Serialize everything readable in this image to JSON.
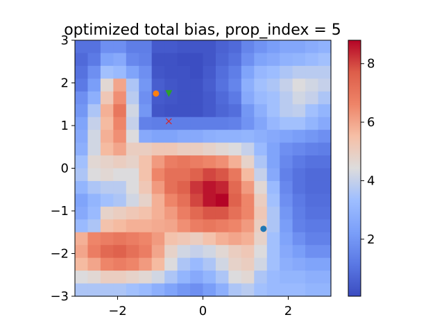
{
  "chart_data": {
    "type": "heatmap",
    "title": "optimized total bias, prop_index = 5",
    "xlabel": "",
    "ylabel": "",
    "xlim": [
      -3,
      3
    ],
    "ylim": [
      -3,
      3
    ],
    "x_ticks": [
      "−2",
      "0",
      "2"
    ],
    "y_ticks": [
      "3",
      "2",
      "1",
      "0",
      "−1",
      "−2",
      "−3"
    ],
    "grid": false,
    "colormap": "coolwarm",
    "colorbar": {
      "min": 0.05,
      "max": 8.8,
      "ticks": [
        "2",
        "4",
        "6",
        "8"
      ]
    },
    "rows": 20,
    "cols": 20,
    "grid_values": [
      [
        1.0,
        1.0,
        1.8,
        1.8,
        1.3,
        1.3,
        0.4,
        0.4,
        0.3,
        0.3,
        0.3,
        0.6,
        0.8,
        1.5,
        1.9,
        2.2,
        2.5,
        2.5,
        2.7,
        2.9
      ],
      [
        0.8,
        1.2,
        2.4,
        2.6,
        1.6,
        1.4,
        0.2,
        0.2,
        0.1,
        0.1,
        0.3,
        0.7,
        1.0,
        1.8,
        2.4,
        2.6,
        2.9,
        3.0,
        3.2,
        3.4
      ],
      [
        1.0,
        1.8,
        3.4,
        3.2,
        2.4,
        1.8,
        0.3,
        0.2,
        0.2,
        0.1,
        0.4,
        0.9,
        1.3,
        2.4,
        3.1,
        3.3,
        3.6,
        3.8,
        3.8,
        3.8
      ],
      [
        1.2,
        2.2,
        4.6,
        6.0,
        3.6,
        2.0,
        0.5,
        0.3,
        0.2,
        0.2,
        0.5,
        1.0,
        1.5,
        2.8,
        3.4,
        3.6,
        4.0,
        4.4,
        4.2,
        4.0
      ],
      [
        1.8,
        2.8,
        5.2,
        6.4,
        3.8,
        1.8,
        0.4,
        0.3,
        0.2,
        0.2,
        0.4,
        0.8,
        1.2,
        2.6,
        3.2,
        3.4,
        3.8,
        4.2,
        4.0,
        3.6
      ],
      [
        2.0,
        3.6,
        5.8,
        7.0,
        4.2,
        2.0,
        0.3,
        0.2,
        0.2,
        0.2,
        0.4,
        0.7,
        0.9,
        2.0,
        2.8,
        3.4,
        3.8,
        3.9,
        3.4,
        3.0
      ],
      [
        2.4,
        4.0,
        5.6,
        6.6,
        4.0,
        1.4,
        1.3,
        1.3,
        1.3,
        1.3,
        1.3,
        1.3,
        1.4,
        1.9,
        2.5,
        3.1,
        3.4,
        3.4,
        3.0,
        2.6
      ],
      [
        2.6,
        4.2,
        5.8,
        6.4,
        4.4,
        2.6,
        2.4,
        2.4,
        2.6,
        2.6,
        2.8,
        2.9,
        2.9,
        3.0,
        2.8,
        2.6,
        2.4,
        2.2,
        2.0,
        1.8
      ],
      [
        2.8,
        4.2,
        5.6,
        6.0,
        5.0,
        5.0,
        5.2,
        5.2,
        5.0,
        5.0,
        4.8,
        4.6,
        4.4,
        4.0,
        3.2,
        2.4,
        1.8,
        1.6,
        1.4,
        1.3
      ],
      [
        3.4,
        4.6,
        4.8,
        5.0,
        4.8,
        5.4,
        6.2,
        6.8,
        7.0,
        6.8,
        6.6,
        6.4,
        5.8,
        4.8,
        3.6,
        2.4,
        1.6,
        1.2,
        1.0,
        1.0
      ],
      [
        3.6,
        4.4,
        4.6,
        4.4,
        4.4,
        5.4,
        6.6,
        7.2,
        7.2,
        7.6,
        8.0,
        7.8,
        7.0,
        5.6,
        4.0,
        2.6,
        1.4,
        1.0,
        0.8,
        0.8
      ],
      [
        3.0,
        3.6,
        3.8,
        3.8,
        4.4,
        5.2,
        6.2,
        7.2,
        7.6,
        8.2,
        8.6,
        8.4,
        7.4,
        6.2,
        4.6,
        3.2,
        1.6,
        1.0,
        0.8,
        0.8
      ],
      [
        2.4,
        3.0,
        3.4,
        3.6,
        4.2,
        4.8,
        5.8,
        6.6,
        7.2,
        8.0,
        8.6,
        8.8,
        7.6,
        6.6,
        5.0,
        3.4,
        1.8,
        1.2,
        0.9,
        0.9
      ],
      [
        2.6,
        3.2,
        4.8,
        5.0,
        5.2,
        5.4,
        5.8,
        6.2,
        6.8,
        7.4,
        7.8,
        7.8,
        7.2,
        6.6,
        5.2,
        3.6,
        2.0,
        1.3,
        1.0,
        1.0
      ],
      [
        3.2,
        3.6,
        5.4,
        5.6,
        5.8,
        5.8,
        5.9,
        6.0,
        6.4,
        6.8,
        7.0,
        6.8,
        6.6,
        6.2,
        5.0,
        3.6,
        2.2,
        1.4,
        1.2,
        1.2
      ],
      [
        5.8,
        6.6,
        6.8,
        7.0,
        6.8,
        6.6,
        6.2,
        5.4,
        5.2,
        5.0,
        5.4,
        5.8,
        6.0,
        5.8,
        4.8,
        3.4,
        2.4,
        1.8,
        1.4,
        1.4
      ],
      [
        6.0,
        6.8,
        7.4,
        7.6,
        7.2,
        6.8,
        6.0,
        4.8,
        4.2,
        4.0,
        4.2,
        4.6,
        5.0,
        5.2,
        4.4,
        3.4,
        2.6,
        2.2,
        1.8,
        1.8
      ],
      [
        5.6,
        6.0,
        6.6,
        6.8,
        6.6,
        6.2,
        5.6,
        4.4,
        3.6,
        3.2,
        3.6,
        4.2,
        4.8,
        5.0,
        4.2,
        3.4,
        2.8,
        2.6,
        2.4,
        2.4
      ],
      [
        4.4,
        4.6,
        5.0,
        5.0,
        4.8,
        4.6,
        4.2,
        3.6,
        3.0,
        2.6,
        3.0,
        3.6,
        4.4,
        4.6,
        3.6,
        3.2,
        3.0,
        3.0,
        2.8,
        2.8
      ],
      [
        3.6,
        3.6,
        3.6,
        3.6,
        3.4,
        3.2,
        2.8,
        2.4,
        2.0,
        1.8,
        2.2,
        2.8,
        3.6,
        3.8,
        3.4,
        3.2,
        3.2,
        3.2,
        3.0,
        3.0
      ]
    ],
    "markers": [
      {
        "label": "orange-circle",
        "x": -1.1,
        "y": 1.75,
        "shape": "circle",
        "color": "#ff7f0e"
      },
      {
        "label": "green-triangle",
        "x": -0.8,
        "y": 1.75,
        "shape": "triangle-down",
        "color": "#2ca02c"
      },
      {
        "label": "red-cross",
        "x": -0.8,
        "y": 1.1,
        "shape": "x",
        "color": "#d62728"
      },
      {
        "label": "blue-circle",
        "x": 1.42,
        "y": -1.42,
        "shape": "circle",
        "color": "#1f77b4"
      }
    ]
  }
}
